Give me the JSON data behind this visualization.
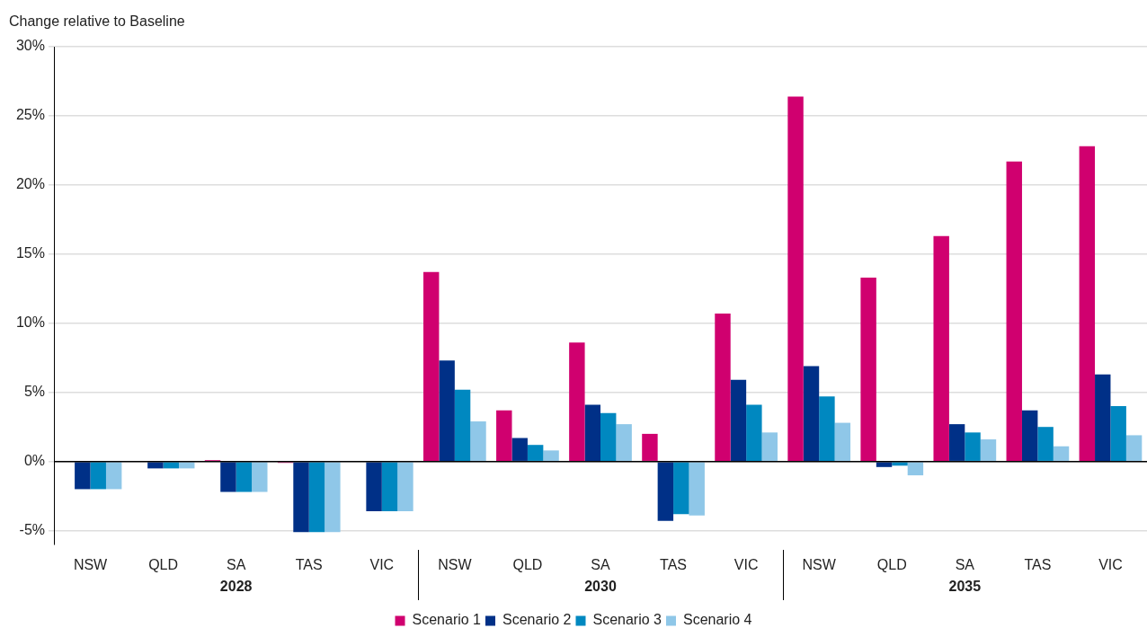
{
  "chart_data": {
    "type": "bar",
    "ylabel": "Change relative to Baseline",
    "categories": [
      "NSW",
      "QLD",
      "SA",
      "TAS",
      "VIC",
      "NSW",
      "QLD",
      "SA",
      "TAS",
      "VIC",
      "NSW",
      "QLD",
      "SA",
      "TAS",
      "VIC"
    ],
    "annotations": [
      "2028",
      "2030",
      "2035"
    ],
    "series": [
      {
        "name": "Scenario 1",
        "color": "#d0006f",
        "values": [
          0,
          0,
          0.1,
          -0.1,
          0,
          13.7,
          3.7,
          8.6,
          2.0,
          10.7,
          26.4,
          13.3,
          16.3,
          21.7,
          22.8
        ]
      },
      {
        "name": "Scenario 2",
        "color": "#003087",
        "values": [
          -2.0,
          -0.5,
          -2.2,
          -5.1,
          -3.6,
          7.3,
          1.7,
          4.1,
          -4.3,
          5.9,
          6.9,
          -0.4,
          2.7,
          3.7,
          6.3
        ]
      },
      {
        "name": "Scenario 3",
        "color": "#0088c0",
        "values": [
          -2.0,
          -0.5,
          -2.2,
          -5.1,
          -3.6,
          5.2,
          1.2,
          3.5,
          -3.8,
          4.1,
          4.7,
          -0.3,
          2.1,
          2.5,
          4.0
        ]
      },
      {
        "name": "Scenario 4",
        "color": "#8fc7e8",
        "values": [
          -2.0,
          -0.5,
          -2.2,
          -5.1,
          -3.6,
          2.9,
          0.8,
          2.7,
          -3.9,
          2.1,
          2.8,
          -1.0,
          1.6,
          1.1,
          1.9
        ]
      }
    ],
    "ylim": [
      -6,
      30
    ],
    "yticks": [
      {
        "value": -5,
        "label": "-5%"
      },
      {
        "value": 0,
        "label": "0%"
      },
      {
        "value": 5,
        "label": "5%"
      },
      {
        "value": 10,
        "label": "10%"
      },
      {
        "value": 15,
        "label": "15%"
      },
      {
        "value": 20,
        "label": "20%"
      },
      {
        "value": 25,
        "label": "25%"
      },
      {
        "value": 30,
        "label": "30%"
      }
    ],
    "grid": "y",
    "legend": "bottom"
  }
}
